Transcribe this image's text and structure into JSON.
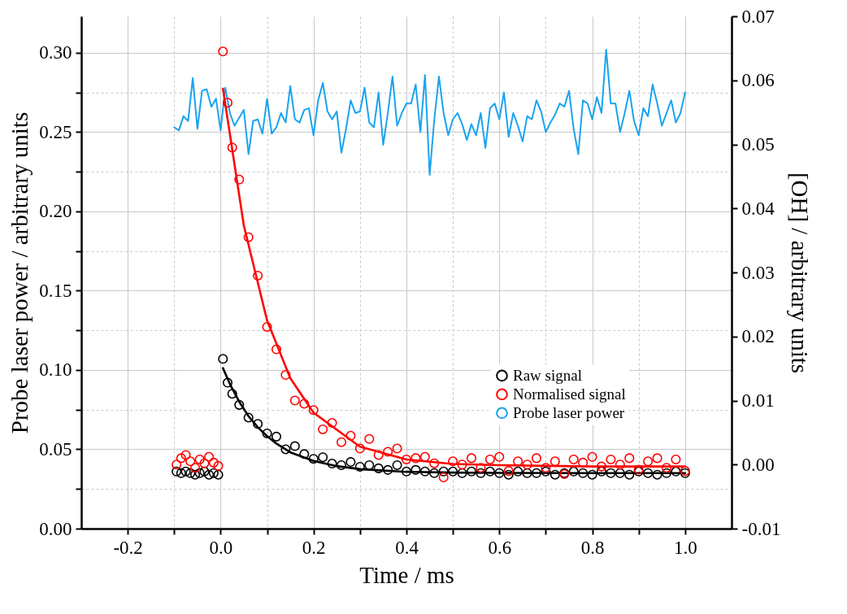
{
  "chart_data": {
    "type": "scatter",
    "xlabel": "Time / ms",
    "ylabel": "Probe laser power / arbitrary units",
    "y2label": "[OH] / arbitrary units",
    "xlim": [
      -0.3,
      1.1
    ],
    "ylim": [
      0,
      0.323
    ],
    "y2lim": [
      -0.01,
      0.07
    ],
    "xticks": [
      {
        "value": -0.2,
        "label": "-0.2"
      },
      {
        "value": -0.1,
        "label": null
      },
      {
        "value": 0,
        "label": "0.0"
      },
      {
        "value": 0.1,
        "label": null
      },
      {
        "value": 0.2,
        "label": "0.2"
      },
      {
        "value": 0.3,
        "label": null
      },
      {
        "value": 0.4,
        "label": "0.4"
      },
      {
        "value": 0.5,
        "label": null
      },
      {
        "value": 0.6,
        "label": "0.6"
      },
      {
        "value": 0.7,
        "label": null
      },
      {
        "value": 0.8,
        "label": "0.8"
      },
      {
        "value": 0.9,
        "label": null
      },
      {
        "value": 1,
        "label": "1.0"
      }
    ],
    "yticks": [
      {
        "value": 0,
        "label": "0.00"
      },
      {
        "value": 0.025,
        "label": null
      },
      {
        "value": 0.05,
        "label": "0.05"
      },
      {
        "value": 0.075,
        "label": null
      },
      {
        "value": 0.1,
        "label": "0.10"
      },
      {
        "value": 0.125,
        "label": null
      },
      {
        "value": 0.15,
        "label": "0.15"
      },
      {
        "value": 0.175,
        "label": null
      },
      {
        "value": 0.2,
        "label": "0.20"
      },
      {
        "value": 0.225,
        "label": null
      },
      {
        "value": 0.25,
        "label": "0.25"
      },
      {
        "value": 0.275,
        "label": null
      },
      {
        "value": 0.3,
        "label": "0.30"
      }
    ],
    "y2ticks": [
      {
        "value": -0.01,
        "label": "-0.01"
      },
      {
        "value": 0,
        "label": "0.00"
      },
      {
        "value": 0.01,
        "label": "0.01"
      },
      {
        "value": 0.02,
        "label": "0.02"
      },
      {
        "value": 0.03,
        "label": "0.03"
      },
      {
        "value": 0.04,
        "label": "0.04"
      },
      {
        "value": 0.05,
        "label": "0.05"
      },
      {
        "value": 0.06,
        "label": "0.06"
      },
      {
        "value": 0.07,
        "label": "0.07"
      }
    ],
    "grid": true,
    "legend": "right",
    "line_style": "solid",
    "series": [
      {
        "name": "Raw signal",
        "marker": "circle",
        "color": "#000000",
        "x": [
          -0.095,
          -0.085,
          -0.075,
          -0.065,
          -0.055,
          -0.045,
          -0.035,
          -0.025,
          -0.015,
          -0.005,
          0.005,
          0.015,
          0.025,
          0.04,
          0.06,
          0.08,
          0.1,
          0.12,
          0.14,
          0.16,
          0.18,
          0.2,
          0.22,
          0.24,
          0.26,
          0.28,
          0.3,
          0.32,
          0.34,
          0.36,
          0.38,
          0.4,
          0.42,
          0.44,
          0.46,
          0.48,
          0.5,
          0.52,
          0.54,
          0.56,
          0.58,
          0.6,
          0.62,
          0.64,
          0.66,
          0.68,
          0.7,
          0.72,
          0.74,
          0.76,
          0.78,
          0.8,
          0.82,
          0.84,
          0.86,
          0.88,
          0.9,
          0.92,
          0.94,
          0.96,
          0.98,
          1
        ],
        "values": [
          0.036,
          0.035,
          0.036,
          0.035,
          0.034,
          0.035,
          0.036,
          0.034,
          0.035,
          0.034,
          0.107,
          0.092,
          0.085,
          0.078,
          0.07,
          0.066,
          0.06,
          0.058,
          0.05,
          0.052,
          0.047,
          0.044,
          0.045,
          0.041,
          0.04,
          0.042,
          0.039,
          0.04,
          0.038,
          0.037,
          0.04,
          0.036,
          0.037,
          0.036,
          0.035,
          0.036,
          0.036,
          0.035,
          0.036,
          0.035,
          0.036,
          0.035,
          0.034,
          0.036,
          0.035,
          0.035,
          0.036,
          0.034,
          0.035,
          0.036,
          0.035,
          0.034,
          0.036,
          0.035,
          0.035,
          0.034,
          0.036,
          0.035,
          0.034,
          0.035,
          0.036,
          0.035
        ]
      },
      {
        "type": "line",
        "marker": "none",
        "color": "#000000",
        "x": [
          0.005,
          0.02,
          0.04,
          0.06,
          0.08,
          0.1,
          0.12,
          0.15,
          0.2,
          0.25,
          0.3,
          0.4,
          0.5,
          0.6,
          0.8,
          1
        ],
        "values": [
          0.1012,
          0.0911,
          0.08,
          0.0709,
          0.0639,
          0.0583,
          0.0536,
          0.0481,
          0.0427,
          0.0394,
          0.0375,
          0.0358,
          0.0353,
          0.0351,
          0.035,
          0.035
        ]
      },
      {
        "name": "Normalised signal",
        "marker": "circle",
        "axis": "y2",
        "color": "#ff0000",
        "x": [
          -0.095,
          -0.085,
          -0.075,
          -0.065,
          -0.055,
          -0.045,
          -0.035,
          -0.025,
          -0.015,
          -0.005,
          0.005,
          0.015,
          0.025,
          0.04,
          0.06,
          0.08,
          0.1,
          0.12,
          0.14,
          0.16,
          0.18,
          0.2,
          0.22,
          0.24,
          0.26,
          0.28,
          0.3,
          0.32,
          0.34,
          0.36,
          0.38,
          0.4,
          0.42,
          0.44,
          0.46,
          0.48,
          0.5,
          0.52,
          0.54,
          0.56,
          0.58,
          0.6,
          0.62,
          0.64,
          0.66,
          0.68,
          0.7,
          0.72,
          0.74,
          0.76,
          0.78,
          0.8,
          0.82,
          0.84,
          0.86,
          0.88,
          0.9,
          0.92,
          0.94,
          0.96,
          0.98,
          1
        ],
        "values": [
          0,
          0.001,
          0.0015,
          0.0005,
          -0.0005,
          0.0008,
          0.0002,
          0.0012,
          0.0003,
          -0.0002,
          0.0645,
          0.0565,
          0.0495,
          0.0445,
          0.0355,
          0.0295,
          0.0215,
          0.018,
          0.014,
          0.01,
          0.0095,
          0.0085,
          0.0055,
          0.0065,
          0.0035,
          0.0045,
          0.0025,
          0.004,
          0.0015,
          0.002,
          0.0025,
          0.0008,
          0.001,
          0.0012,
          0.0002,
          -0.002,
          0.0005,
          0,
          0.001,
          -0.0005,
          0.0008,
          0.0012,
          -0.001,
          0.0005,
          0,
          0.001,
          -0.0005,
          0.0005,
          -0.0015,
          0.0008,
          0.0003,
          0.0012,
          -0.0003,
          0.0008,
          0,
          0.001,
          -0.0008,
          0.0005,
          0.001,
          -0.0005,
          0.0008,
          -0.001
        ]
      },
      {
        "type": "line",
        "marker": "none",
        "axis": "y2",
        "color": "#ff0000",
        "x": [
          0.005,
          0.05,
          0.1,
          0.15,
          0.2,
          0.3,
          0.4,
          0.5,
          0.6,
          0.8,
          1
        ],
        "values": [
          0.0587,
          0.0373,
          0.0225,
          0.0135,
          0.0081,
          0.0028,
          0.0008,
          0.0001,
          -0.0001,
          -0.0003,
          -0.0003
        ]
      },
      {
        "name": "Probe laser power",
        "type": "line",
        "marker": "none",
        "color": "#1aa3f0",
        "x": [
          -0.1,
          -0.09,
          -0.08,
          -0.07,
          -0.06,
          -0.05,
          -0.04,
          -0.03,
          -0.02,
          -0.01,
          0,
          0.01,
          0.02,
          0.03,
          0.04,
          0.05,
          0.06,
          0.07,
          0.08,
          0.09,
          0.1,
          0.11,
          0.12,
          0.13,
          0.14,
          0.15,
          0.16,
          0.17,
          0.18,
          0.19,
          0.2,
          0.21,
          0.22,
          0.23,
          0.24,
          0.25,
          0.26,
          0.27,
          0.28,
          0.29,
          0.3,
          0.31,
          0.32,
          0.33,
          0.34,
          0.35,
          0.36,
          0.37,
          0.38,
          0.39,
          0.4,
          0.41,
          0.42,
          0.43,
          0.44,
          0.45,
          0.46,
          0.47,
          0.48,
          0.49,
          0.5,
          0.51,
          0.52,
          0.53,
          0.54,
          0.55,
          0.56,
          0.57,
          0.58,
          0.59,
          0.6,
          0.61,
          0.62,
          0.63,
          0.64,
          0.65,
          0.66,
          0.67,
          0.68,
          0.69,
          0.7,
          0.71,
          0.72,
          0.73,
          0.74,
          0.75,
          0.76,
          0.77,
          0.78,
          0.79,
          0.8,
          0.81,
          0.82,
          0.83,
          0.84,
          0.85,
          0.86,
          0.87,
          0.88,
          0.89,
          0.9,
          0.91,
          0.92,
          0.93,
          0.94,
          0.95,
          0.96,
          0.97,
          0.98,
          0.99,
          1
        ],
        "values": [
          0.253,
          0.251,
          0.26,
          0.257,
          0.284,
          0.252,
          0.276,
          0.277,
          0.266,
          0.271,
          0.251,
          0.278,
          0.262,
          0.254,
          0.259,
          0.264,
          0.236,
          0.257,
          0.258,
          0.249,
          0.271,
          0.249,
          0.253,
          0.262,
          0.256,
          0.279,
          0.258,
          0.256,
          0.264,
          0.265,
          0.248,
          0.27,
          0.281,
          0.263,
          0.258,
          0.263,
          0.237,
          0.252,
          0.27,
          0.262,
          0.263,
          0.278,
          0.256,
          0.253,
          0.275,
          0.242,
          0.262,
          0.285,
          0.254,
          0.262,
          0.268,
          0.268,
          0.28,
          0.25,
          0.286,
          0.223,
          0.258,
          0.285,
          0.262,
          0.248,
          0.258,
          0.262,
          0.255,
          0.245,
          0.255,
          0.248,
          0.262,
          0.24,
          0.265,
          0.268,
          0.258,
          0.275,
          0.247,
          0.262,
          0.254,
          0.244,
          0.26,
          0.258,
          0.27,
          0.263,
          0.25,
          0.256,
          0.261,
          0.268,
          0.266,
          0.276,
          0.252,
          0.236,
          0.27,
          0.268,
          0.258,
          0.272,
          0.262,
          0.302,
          0.268,
          0.268,
          0.25,
          0.262,
          0.276,
          0.257,
          0.248,
          0.265,
          0.26,
          0.28,
          0.268,
          0.254,
          0.262,
          0.27,
          0.256,
          0.262,
          0.275
        ]
      }
    ]
  }
}
